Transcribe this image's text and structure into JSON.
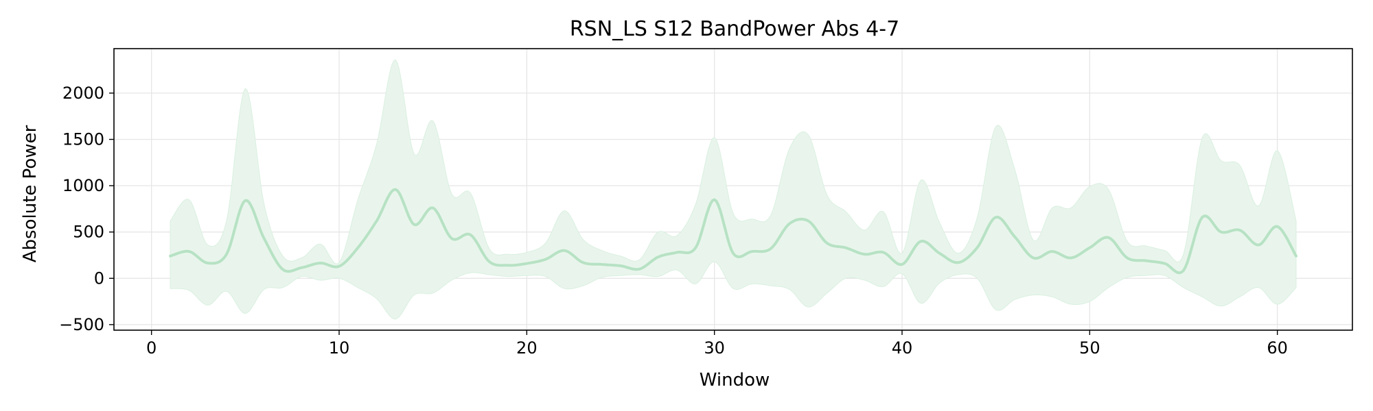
{
  "chart_data": {
    "type": "line",
    "title": "RSN_LS S12 BandPower Abs 4-7",
    "xlabel": "Window",
    "ylabel": "Absolute Power",
    "xlim": [
      -2,
      64
    ],
    "ylim": [
      -560,
      2480
    ],
    "xticks": [
      0,
      10,
      20,
      30,
      40,
      50,
      60
    ],
    "yticks": [
      -500,
      0,
      500,
      1000,
      1500,
      2000
    ],
    "grid": true,
    "colors": {
      "line": "#b7e2c4",
      "band": "#e9f5ec",
      "band_edge": "#d9efe0",
      "grid": "#e6e6e6",
      "axis": "#000000"
    },
    "series": [
      {
        "kind": "mean_line",
        "x": [
          1,
          2,
          3,
          4,
          5,
          6,
          7,
          8,
          9,
          10,
          11,
          12,
          13,
          14,
          15,
          16,
          17,
          18,
          19,
          20,
          21,
          22,
          23,
          24,
          25,
          26,
          27,
          28,
          29,
          30,
          31,
          32,
          33,
          34,
          35,
          36,
          37,
          38,
          39,
          40,
          41,
          42,
          43,
          44,
          45,
          46,
          47,
          48,
          49,
          50,
          51,
          52,
          53,
          54,
          55,
          56,
          57,
          58,
          59,
          60,
          61
        ],
        "y": [
          240,
          290,
          165,
          260,
          840,
          430,
          95,
          115,
          165,
          130,
          330,
          620,
          960,
          580,
          760,
          430,
          470,
          180,
          140,
          160,
          205,
          300,
          170,
          150,
          135,
          100,
          230,
          280,
          330,
          850,
          270,
          290,
          320,
          590,
          620,
          380,
          330,
          260,
          280,
          150,
          400,
          270,
          170,
          330,
          660,
          450,
          220,
          290,
          220,
          330,
          440,
          220,
          190,
          160,
          85,
          660,
          500,
          520,
          360,
          560,
          240
        ]
      },
      {
        "kind": "band_upper",
        "x": [
          1,
          2,
          3,
          4,
          5,
          6,
          7,
          8,
          9,
          10,
          11,
          12,
          13,
          14,
          15,
          16,
          17,
          18,
          19,
          20,
          21,
          22,
          23,
          24,
          25,
          26,
          27,
          28,
          29,
          30,
          31,
          32,
          33,
          34,
          35,
          36,
          37,
          38,
          39,
          40,
          41,
          42,
          43,
          44,
          45,
          46,
          47,
          48,
          49,
          50,
          51,
          52,
          53,
          54,
          55,
          56,
          57,
          58,
          59,
          60,
          61
        ],
        "y": [
          620,
          850,
          360,
          620,
          2050,
          800,
          240,
          220,
          370,
          170,
          850,
          1450,
          2360,
          1340,
          1700,
          910,
          920,
          320,
          260,
          280,
          380,
          730,
          420,
          300,
          240,
          200,
          500,
          460,
          800,
          1520,
          700,
          640,
          680,
          1400,
          1550,
          900,
          720,
          520,
          720,
          270,
          1060,
          600,
          270,
          650,
          1640,
          1180,
          410,
          760,
          760,
          990,
          960,
          400,
          350,
          300,
          260,
          1520,
          1270,
          1220,
          780,
          1380,
          620
        ]
      },
      {
        "kind": "band_lower",
        "x": [
          1,
          2,
          3,
          4,
          5,
          6,
          7,
          8,
          9,
          10,
          11,
          12,
          13,
          14,
          15,
          16,
          17,
          18,
          19,
          20,
          21,
          22,
          23,
          24,
          25,
          26,
          27,
          28,
          29,
          30,
          31,
          32,
          33,
          34,
          35,
          36,
          37,
          38,
          39,
          40,
          41,
          42,
          43,
          44,
          45,
          46,
          47,
          48,
          49,
          50,
          51,
          52,
          53,
          54,
          55,
          56,
          57,
          58,
          59,
          60,
          61
        ],
        "y": [
          -110,
          -130,
          -290,
          -140,
          -380,
          -120,
          -100,
          20,
          -20,
          0,
          -100,
          -220,
          -440,
          -180,
          -160,
          -20,
          60,
          40,
          20,
          30,
          20,
          -110,
          -80,
          10,
          30,
          40,
          20,
          90,
          -60,
          180,
          -110,
          -60,
          -80,
          -120,
          -310,
          -160,
          0,
          -20,
          -90,
          50,
          -270,
          -50,
          40,
          0,
          -340,
          -230,
          -180,
          -200,
          -280,
          -250,
          -100,
          10,
          30,
          30,
          -100,
          -200,
          -300,
          -200,
          -100,
          -280,
          -100
        ]
      }
    ]
  }
}
